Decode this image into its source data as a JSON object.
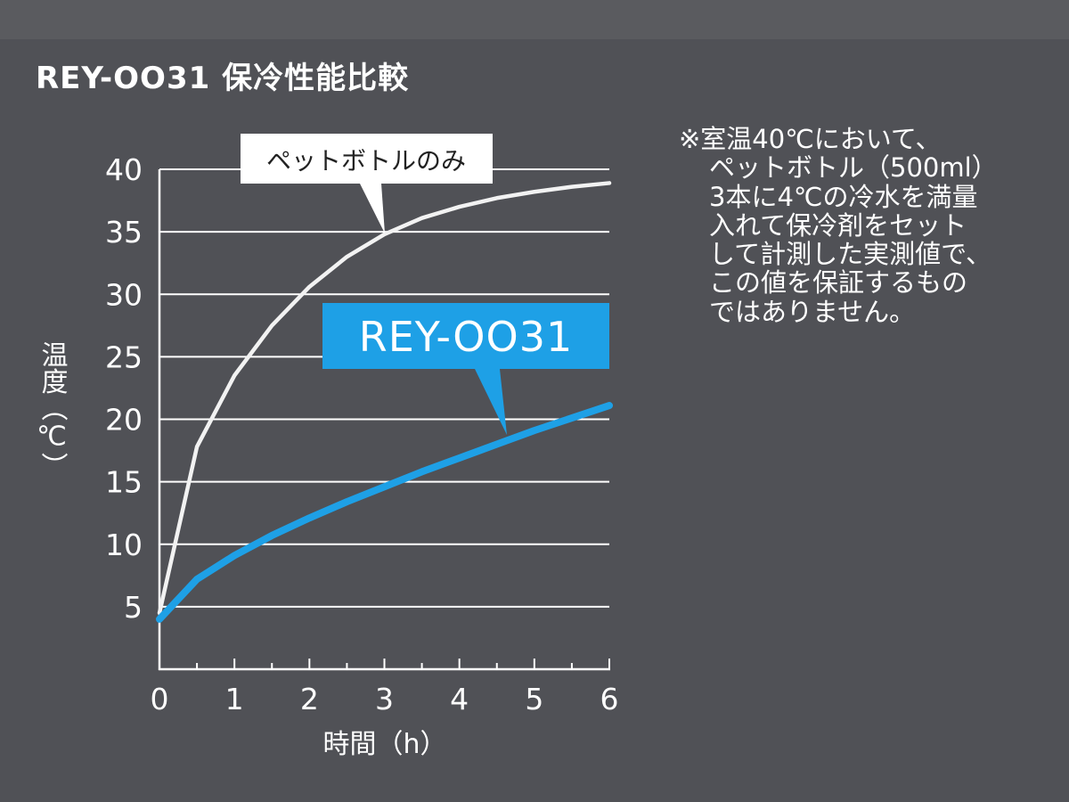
{
  "title": "REY-OO31 保冷性能比較",
  "note_lines": [
    "※室温40℃において、",
    "ペットボトル（500ml）",
    "3本に4℃の冷水を満量",
    "入れて保冷剤をセット",
    "して計測した実測値で、",
    "この値を保証するもの",
    "ではありません。"
  ],
  "colors": {
    "background": "#505156",
    "grid": "#ffffff",
    "bottle_series": "#f2f2f2",
    "rey_series": "#1ea0e6",
    "label_box_white": "#ffffff",
    "label_box_blue": "#1ea0e6"
  },
  "chart_data": {
    "type": "line",
    "title": "REY-OO31 保冷性能比較",
    "xlabel": "時間（h）",
    "ylabel": "温度（℃）",
    "xlim": [
      0,
      6
    ],
    "ylim": [
      0,
      40
    ],
    "x_ticks": [
      "0",
      "1",
      "2",
      "3",
      "4",
      "5",
      "6"
    ],
    "y_ticks": [
      "5",
      "10",
      "15",
      "20",
      "25",
      "30",
      "35",
      "40"
    ],
    "y_tick_values": [
      5,
      10,
      15,
      20,
      25,
      30,
      35,
      40
    ],
    "grid": "horizontal",
    "series": [
      {
        "name": "ペットボトルのみ",
        "label_style": "white-box",
        "x": [
          0,
          0.5,
          1,
          1.5,
          2,
          2.5,
          3,
          3.5,
          4,
          4.5,
          5,
          5.5,
          6
        ],
        "y": [
          4.5,
          17.8,
          23.5,
          27.5,
          30.6,
          33.0,
          34.8,
          36.1,
          37.0,
          37.7,
          38.2,
          38.6,
          38.9
        ]
      },
      {
        "name": "REY-OO31",
        "label_style": "blue-box",
        "x": [
          0,
          0.5,
          1,
          1.5,
          2,
          2.5,
          3,
          3.5,
          4,
          4.5,
          5,
          5.5,
          6
        ],
        "y": [
          4.0,
          7.2,
          9.1,
          10.7,
          12.1,
          13.4,
          14.6,
          15.8,
          16.9,
          18.0,
          19.1,
          20.1,
          21.1
        ]
      }
    ]
  }
}
